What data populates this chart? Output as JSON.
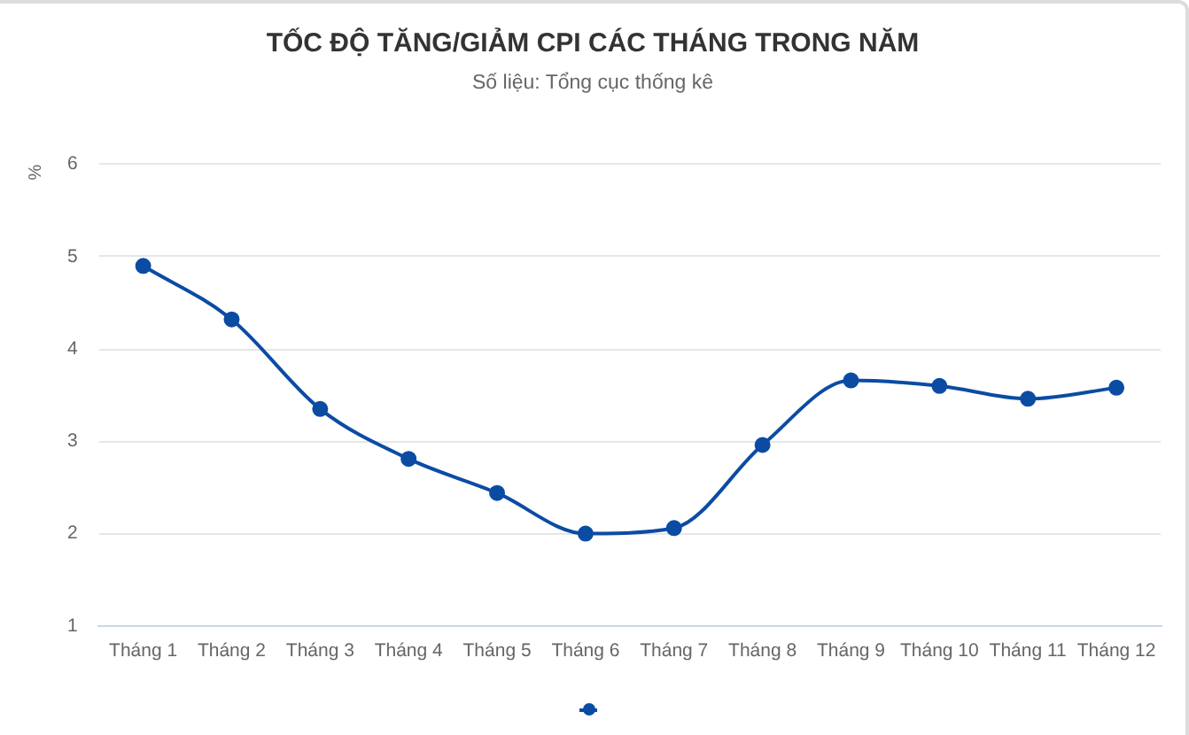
{
  "chart_data": {
    "type": "line",
    "title": "TỐC ĐỘ TĂNG/GIẢM CPI CÁC THÁNG TRONG NĂM",
    "subtitle": "Số liệu: Tổng cục thống kê",
    "ylabel": "%",
    "categories": [
      "Tháng 1",
      "Tháng 2",
      "Tháng 3",
      "Tháng 4",
      "Tháng 5",
      "Tháng 6",
      "Tháng 7",
      "Tháng 8",
      "Tháng 9",
      "Tháng 10",
      "Tháng 11",
      "Tháng 12"
    ],
    "series": [
      {
        "color": "#0b4ca3",
        "values": [
          4.9,
          4.32,
          3.35,
          2.81,
          2.44,
          2.0,
          2.06,
          2.96,
          3.66,
          3.6,
          3.46,
          3.58
        ]
      }
    ],
    "ylim": [
      1,
      6
    ],
    "yticks": [
      1,
      2,
      3,
      4,
      5,
      6
    ],
    "grid": "y",
    "marker": "circle",
    "line_style": "solid"
  }
}
